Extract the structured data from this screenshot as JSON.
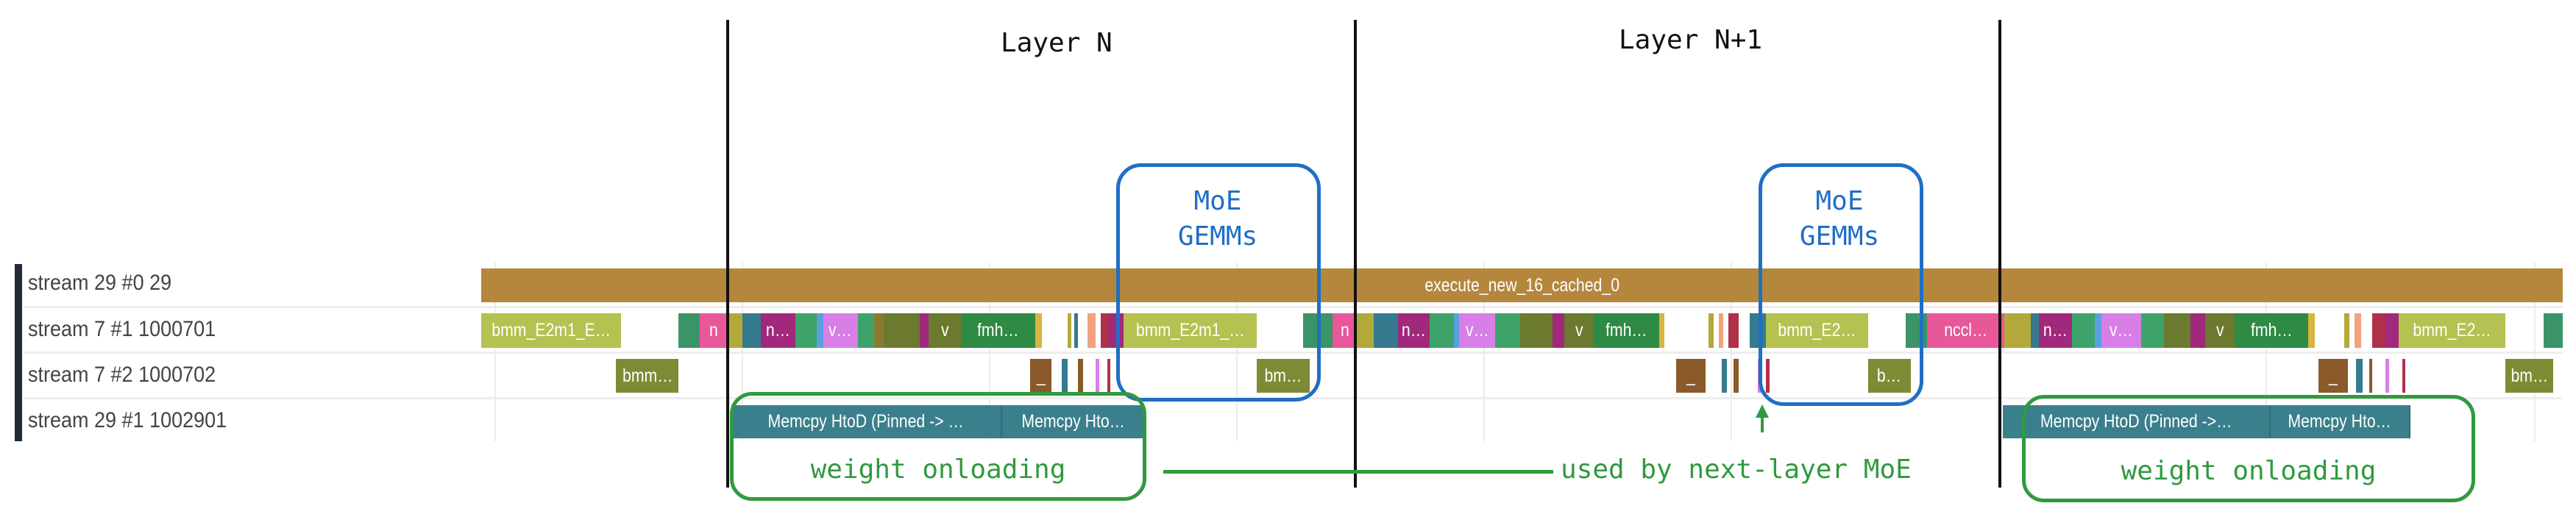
{
  "layers": {
    "layer_n": "Layer N",
    "layer_n1": "Layer N+1"
  },
  "rows": [
    {
      "label": "stream 29 #0 29"
    },
    {
      "label": "stream 7 #1 1000701"
    },
    {
      "label": "stream 7 #2 1000702"
    },
    {
      "label": "stream 29 #1 1002901"
    }
  ],
  "row1_blocks": [
    "execute_new_16_cached_0"
  ],
  "row2_blocks": [
    "bmm_E2m1_E…",
    "n",
    "n…",
    "v…",
    "v",
    "fmh…",
    "bmm_E2m1_…",
    "n",
    "n…",
    "v…",
    "v",
    "fmh…",
    "bmm_E2…",
    "nccl…",
    "n…",
    "v…",
    "v",
    "fmh…",
    "bmm_E2…"
  ],
  "row3_blocks": [
    "bmm…",
    "_",
    "bm…",
    "_",
    "b…",
    "_",
    "bm…"
  ],
  "row4_blocks": [
    "Memcpy HtoD (Pinned -> …",
    "Memcpy Hto…",
    "Memcpy HtoD (Pinned ->…",
    "Memcpy Hto…"
  ],
  "annotations": {
    "moe_gemms_1": "MoE GEMMs",
    "moe_gemms_2": "MoE GEMMs",
    "weight_onloading_1": "weight onloading",
    "weight_onloading_2": "weight onloading",
    "used_by": "used by next-layer MoE"
  },
  "colors": {
    "execute": "#b5873d",
    "annotation_blue": "#1f6fc4",
    "annotation_green": "#2f9a3e",
    "memcpy": "#3a7f8c"
  }
}
